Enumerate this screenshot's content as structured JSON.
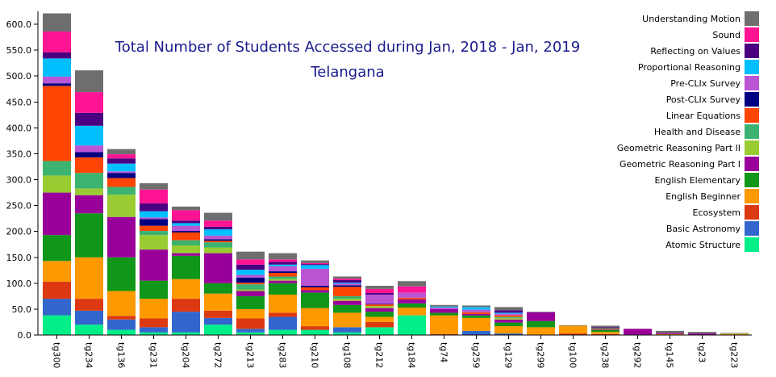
{
  "chart_data": {
    "type": "bar",
    "stacked": true,
    "title": "Total Number of Students Accessed during Jan, 2018 - Jan, 2019",
    "subtitle": "Telangana",
    "categories": [
      "tg300",
      "tg234",
      "tg136",
      "tg231",
      "tg204",
      "tg272",
      "tg213",
      "tg283",
      "tg210",
      "tg108",
      "tg212",
      "tg184",
      "tg74",
      "tg259",
      "tg129",
      "tg299",
      "tg100",
      "tg238",
      "tg292",
      "tg145",
      "tg23",
      "tg223"
    ],
    "ylim": [
      0,
      625
    ],
    "yticks": [
      0,
      50,
      100,
      150,
      200,
      250,
      300,
      350,
      400,
      450,
      500,
      550,
      600
    ],
    "grid": false,
    "legend_position": "right",
    "series": [
      {
        "name": "Atomic Structure",
        "color": "#00ee88",
        "values": [
          38,
          20,
          10,
          5,
          5,
          20,
          5,
          10,
          10,
          5,
          15,
          38,
          0,
          0,
          0,
          0,
          0,
          0,
          0,
          0,
          0,
          0
        ]
      },
      {
        "name": "Basic Astronomy",
        "color": "#3366cc",
        "values": [
          32,
          27,
          20,
          10,
          40,
          13,
          7,
          25,
          0,
          10,
          0,
          0,
          0,
          8,
          3,
          0,
          0,
          0,
          0,
          0,
          0,
          0
        ]
      },
      {
        "name": "Ecosystem",
        "color": "#dc3912",
        "values": [
          33,
          23,
          7,
          17,
          25,
          14,
          20,
          8,
          7,
          0,
          10,
          0,
          2,
          0,
          0,
          0,
          3,
          2,
          0,
          0,
          0,
          0
        ]
      },
      {
        "name": "English Beginner",
        "color": "#ff9900",
        "values": [
          40,
          80,
          48,
          38,
          38,
          33,
          18,
          35,
          35,
          28,
          10,
          15,
          36,
          25,
          14,
          15,
          15,
          4,
          0,
          2,
          0,
          2
        ]
      },
      {
        "name": "English Elementary",
        "color": "#109618",
        "values": [
          50,
          85,
          65,
          35,
          45,
          20,
          25,
          22,
          30,
          15,
          10,
          8,
          5,
          5,
          7,
          12,
          0,
          4,
          0,
          0,
          0,
          0
        ]
      },
      {
        "name": "Geometric Reasoning Part I",
        "color": "#990099",
        "values": [
          82,
          35,
          78,
          60,
          5,
          58,
          10,
          5,
          5,
          8,
          7,
          8,
          7,
          3,
          6,
          17,
          0,
          1,
          12,
          2,
          3,
          0
        ]
      },
      {
        "name": "Geometric Reasoning Part II",
        "color": "#99cc33",
        "values": [
          33,
          13,
          43,
          28,
          15,
          11,
          3,
          3,
          0,
          4,
          4,
          0,
          0,
          0,
          3,
          0,
          0,
          1,
          0,
          0,
          0,
          1
        ]
      },
      {
        "name": "Health and Disease",
        "color": "#3cb371",
        "values": [
          28,
          30,
          15,
          8,
          10,
          10,
          10,
          5,
          0,
          5,
          0,
          0,
          0,
          0,
          2,
          0,
          0,
          0,
          0,
          0,
          0,
          0
        ]
      },
      {
        "name": "Linear Equations",
        "color": "#ff4500",
        "values": [
          145,
          30,
          17,
          10,
          15,
          3,
          3,
          7,
          5,
          18,
          3,
          3,
          0,
          3,
          3,
          0,
          0,
          1,
          0,
          0,
          0,
          0
        ]
      },
      {
        "name": "Post-CLIx Survey",
        "color": "#000080",
        "values": [
          5,
          10,
          10,
          13,
          3,
          3,
          10,
          3,
          3,
          3,
          1,
          0,
          0,
          0,
          0,
          0,
          0,
          1,
          0,
          0,
          0,
          0
        ]
      },
      {
        "name": "Pre-CLIx Survey",
        "color": "#ba55d3",
        "values": [
          13,
          13,
          3,
          3,
          10,
          7,
          5,
          10,
          33,
          3,
          18,
          10,
          3,
          5,
          3,
          0,
          0,
          0,
          0,
          0,
          0,
          0
        ]
      },
      {
        "name": "Proportional Reasoning",
        "color": "#00bfff",
        "values": [
          35,
          38,
          15,
          12,
          5,
          12,
          10,
          3,
          7,
          2,
          0,
          0,
          2,
          5,
          2,
          0,
          0,
          0,
          0,
          0,
          0,
          0
        ]
      },
      {
        "name": "Reflecting on Values",
        "color": "#4b0082",
        "values": [
          12,
          25,
          10,
          15,
          5,
          5,
          10,
          5,
          2,
          5,
          3,
          0,
          0,
          0,
          5,
          0,
          0,
          1,
          0,
          0,
          0,
          0
        ]
      },
      {
        "name": "Sound",
        "color": "#ff1493",
        "values": [
          40,
          40,
          8,
          27,
          20,
          12,
          10,
          5,
          2,
          3,
          8,
          12,
          0,
          0,
          0,
          0,
          0,
          0,
          0,
          0,
          0,
          0
        ]
      },
      {
        "name": "Understanding Motion",
        "color": "#6e6e6e",
        "values": [
          35,
          42,
          10,
          12,
          7,
          15,
          15,
          12,
          5,
          4,
          6,
          10,
          3,
          3,
          6,
          1,
          1,
          3,
          0,
          4,
          3,
          1
        ]
      }
    ]
  }
}
